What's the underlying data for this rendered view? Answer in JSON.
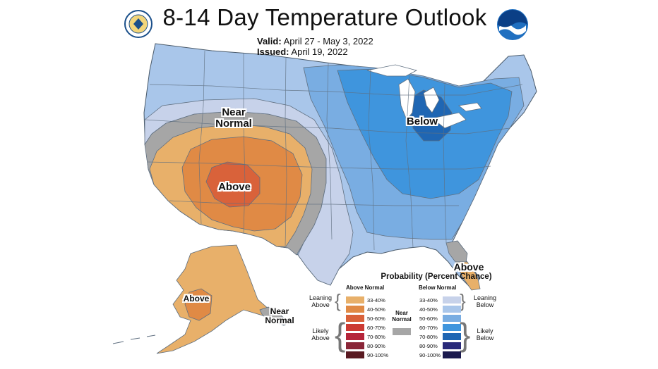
{
  "title": "8-14 Day Temperature Outlook",
  "valid": {
    "label": "Valid:",
    "value": "April 27 - May 3, 2022"
  },
  "issued": {
    "label": "Issued:",
    "value": "April 19, 2022"
  },
  "logos": {
    "left": "doc-seal-icon",
    "right": "noaa-logo-icon"
  },
  "map_labels": {
    "near_normal_west": "Near\nNormal",
    "below_east": "Below",
    "above_west": "Above",
    "above_florida": "Above",
    "above_alaska": "Above",
    "near_normal_alaska": "Near\nNormal"
  },
  "legend": {
    "title": "Probability (Percent Chance)",
    "above_header": "Above Normal",
    "below_header": "Below Normal",
    "near_normal": "Near\nNormal",
    "near_normal_color": "#a6a6a6",
    "leaning_above": "Leaning\nAbove",
    "likely_above": "Likely\nAbove",
    "leaning_below": "Leaning\nBelow",
    "likely_below": "Likely\nBelow",
    "above_rows": [
      {
        "range": "33-40%",
        "color": "#e8b06a"
      },
      {
        "range": "40-50%",
        "color": "#e08a45"
      },
      {
        "range": "50-60%",
        "color": "#d9623a"
      },
      {
        "range": "60-70%",
        "color": "#cc3a33"
      },
      {
        "range": "70-80%",
        "color": "#b5253a"
      },
      {
        "range": "80-90%",
        "color": "#8a2638"
      },
      {
        "range": "90-100%",
        "color": "#5a1a22"
      }
    ],
    "below_rows": [
      {
        "range": "33-40%",
        "color": "#c7d2ea"
      },
      {
        "range": "40-50%",
        "color": "#a9c6ea"
      },
      {
        "range": "50-60%",
        "color": "#79ade2"
      },
      {
        "range": "60-70%",
        "color": "#3f95dd"
      },
      {
        "range": "70-80%",
        "color": "#1f66b3"
      },
      {
        "range": "80-90%",
        "color": "#2a2a7a"
      },
      {
        "range": "90-100%",
        "color": "#1b1a4e"
      }
    ]
  },
  "colors": {
    "background": "#ffffff",
    "state_lines": "#5f6f80",
    "lakes": "#ffffff"
  }
}
